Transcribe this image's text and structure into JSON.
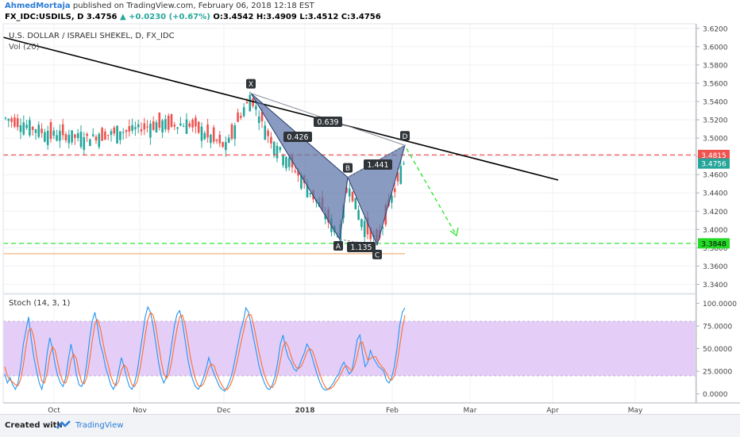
{
  "header": {
    "author": "AhmedMortaja",
    "published": "published on TradingView.com, February 06, 2018 12:18 EST",
    "symbol": "FX_IDC:USDILS, D",
    "last": "3.4756",
    "change": "+0.0230 (+0.67%)",
    "open": "O:3.4542",
    "high": "H:3.4909",
    "low": "L:3.4512",
    "close": "C:3.4756"
  },
  "footer": {
    "created_with": "Created with",
    "brand": "TradingView"
  },
  "chart_data": [
    {
      "type": "candlestick",
      "title": "U.S. DOLLAR / ISRAELI SHEKEL, D, FX_IDC",
      "volume_label": "Vol (20)",
      "ylim": [
        3.33,
        3.625
      ],
      "y_ticks": [
        "3.6200",
        "3.6000",
        "3.5800",
        "3.5600",
        "3.5400",
        "3.5200",
        "3.5000",
        "3.4800",
        "3.4600",
        "3.4400",
        "3.4200",
        "3.4000",
        "3.3800",
        "3.3600",
        "3.3400"
      ],
      "x_ticks": [
        "Oct",
        "Nov",
        "Dec",
        "2018",
        "Feb",
        "Mar",
        "Apr",
        "May"
      ],
      "price_labels": [
        {
          "value": 3.4815,
          "text": "3.4815",
          "color": "#ef5350"
        },
        {
          "value": 3.4756,
          "text": "3.4756",
          "color": "#26a69a"
        },
        {
          "value": 3.3848,
          "text": "3.3848",
          "color": "#26d926"
        }
      ],
      "horizontal_lines": [
        {
          "value": 3.4815,
          "color": "#ef5350",
          "style": "dashed"
        },
        {
          "value": 3.3848,
          "color": "#33e633",
          "style": "dashed"
        },
        {
          "value": 3.3735,
          "color": "#f5b27a",
          "style": "solid"
        }
      ],
      "pattern_points": [
        {
          "label": "X",
          "value": 3.549
        },
        {
          "label": "A",
          "value": 3.389
        },
        {
          "label": "B",
          "value": 3.457
        },
        {
          "label": "C",
          "value": 3.383
        },
        {
          "label": "D",
          "value": 3.492
        }
      ],
      "ratios": [
        "0.639",
        "0.426",
        "1.441",
        "1.135"
      ],
      "colors": {
        "up": "#26a69a",
        "down": "#ef5350",
        "pattern": "#5b74a8"
      }
    },
    {
      "type": "line",
      "title": "Stoch (14, 3, 1)",
      "ylim": [
        -10,
        110
      ],
      "y_ticks": [
        "100.0000",
        "75.0000",
        "50.0000",
        "25.0000",
        "0.0000"
      ],
      "band": [
        20,
        80
      ],
      "series": [
        {
          "color": "#2196f3",
          "values": [
            22,
            12,
            18,
            10,
            5,
            12,
            30,
            55,
            70,
            85,
            60,
            40,
            25,
            12,
            5,
            20,
            45,
            62,
            50,
            32,
            20,
            12,
            8,
            18,
            38,
            55,
            40,
            22,
            10,
            8,
            15,
            35,
            60,
            80,
            90,
            75,
            55,
            45,
            30,
            20,
            10,
            5,
            12,
            25,
            40,
            30,
            18,
            8,
            5,
            12,
            25,
            45,
            65,
            85,
            96,
            90,
            75,
            55,
            35,
            20,
            12,
            18,
            35,
            55,
            75,
            88,
            92,
            80,
            60,
            40,
            25,
            15,
            8,
            5,
            10,
            18,
            28,
            40,
            30,
            22,
            15,
            8,
            5,
            3,
            8,
            15,
            25,
            40,
            55,
            70,
            80,
            95,
            90,
            75,
            60,
            45,
            30,
            20,
            12,
            6,
            5,
            10,
            20,
            35,
            55,
            65,
            50,
            40,
            35,
            28,
            25,
            30,
            38,
            45,
            55,
            50,
            40,
            30,
            20,
            12,
            6,
            4,
            5,
            8,
            12,
            18,
            22,
            30,
            35,
            28,
            22,
            25,
            42,
            60,
            65,
            45,
            30,
            35,
            48,
            40,
            35,
            30,
            28,
            25,
            15,
            12,
            18,
            30,
            50,
            75,
            90,
            95
          ]
        },
        {
          "color": "#ff6d2d",
          "values": [
            30,
            20,
            15,
            13,
            10,
            9,
            16,
            32,
            52,
            70,
            72,
            62,
            42,
            26,
            14,
            12,
            23,
            42,
            52,
            48,
            34,
            21,
            13,
            12,
            21,
            37,
            44,
            39,
            24,
            13,
            11,
            19,
            37,
            58,
            77,
            82,
            73,
            58,
            43,
            32,
            20,
            12,
            9,
            14,
            26,
            32,
            29,
            19,
            10,
            8,
            14,
            27,
            45,
            65,
            82,
            90,
            87,
            74,
            55,
            37,
            22,
            17,
            22,
            36,
            55,
            72,
            85,
            87,
            77,
            60,
            42,
            27,
            16,
            9,
            8,
            11,
            19,
            29,
            33,
            31,
            22,
            15,
            9,
            5,
            5,
            9,
            16,
            27,
            40,
            55,
            68,
            82,
            88,
            87,
            75,
            60,
            45,
            32,
            21,
            13,
            8,
            7,
            12,
            22,
            37,
            52,
            57,
            52,
            42,
            34,
            29,
            28,
            31,
            38,
            46,
            50,
            48,
            40,
            30,
            21,
            13,
            7,
            5,
            6,
            8,
            13,
            17,
            23,
            29,
            31,
            28,
            25,
            31,
            42,
            56,
            57,
            47,
            37,
            39,
            41,
            41,
            35,
            31,
            28,
            23,
            17,
            15,
            20,
            33,
            52,
            72,
            87
          ]
        }
      ]
    }
  ]
}
